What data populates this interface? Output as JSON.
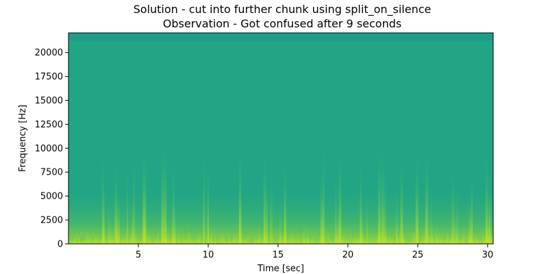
{
  "chart_data": {
    "type": "heatmap",
    "title_lines": [
      "Solution - cut into further chunk using split_on_silence",
      "Observation - Got confused after 9 seconds"
    ],
    "xlabel": "Time [sec]",
    "ylabel": "Frequency [Hz]",
    "xlim": [
      0.0,
      30.4
    ],
    "ylim": [
      0,
      22050
    ],
    "xticks": [
      5,
      10,
      15,
      20,
      25,
      30
    ],
    "yticks": [
      0,
      2500,
      5000,
      7500,
      10000,
      12500,
      15000,
      17500,
      20000
    ],
    "grid": false,
    "legend": "none",
    "colormap": "viridis",
    "colors": {
      "background": "#21a585",
      "top_band": "#1f9a8a",
      "low_energy": "#3fba6e",
      "high_energy": "#bde51f"
    },
    "approx_energy_bursts_sec": [
      2.6,
      3.5,
      4.4,
      5.5,
      6.8,
      7.3,
      9.8,
      12.1,
      14.2,
      15.3,
      18.0,
      19.3,
      21.1,
      22.4,
      23.6,
      24.7,
      25.7,
      27.6,
      28.8,
      29.8
    ]
  }
}
